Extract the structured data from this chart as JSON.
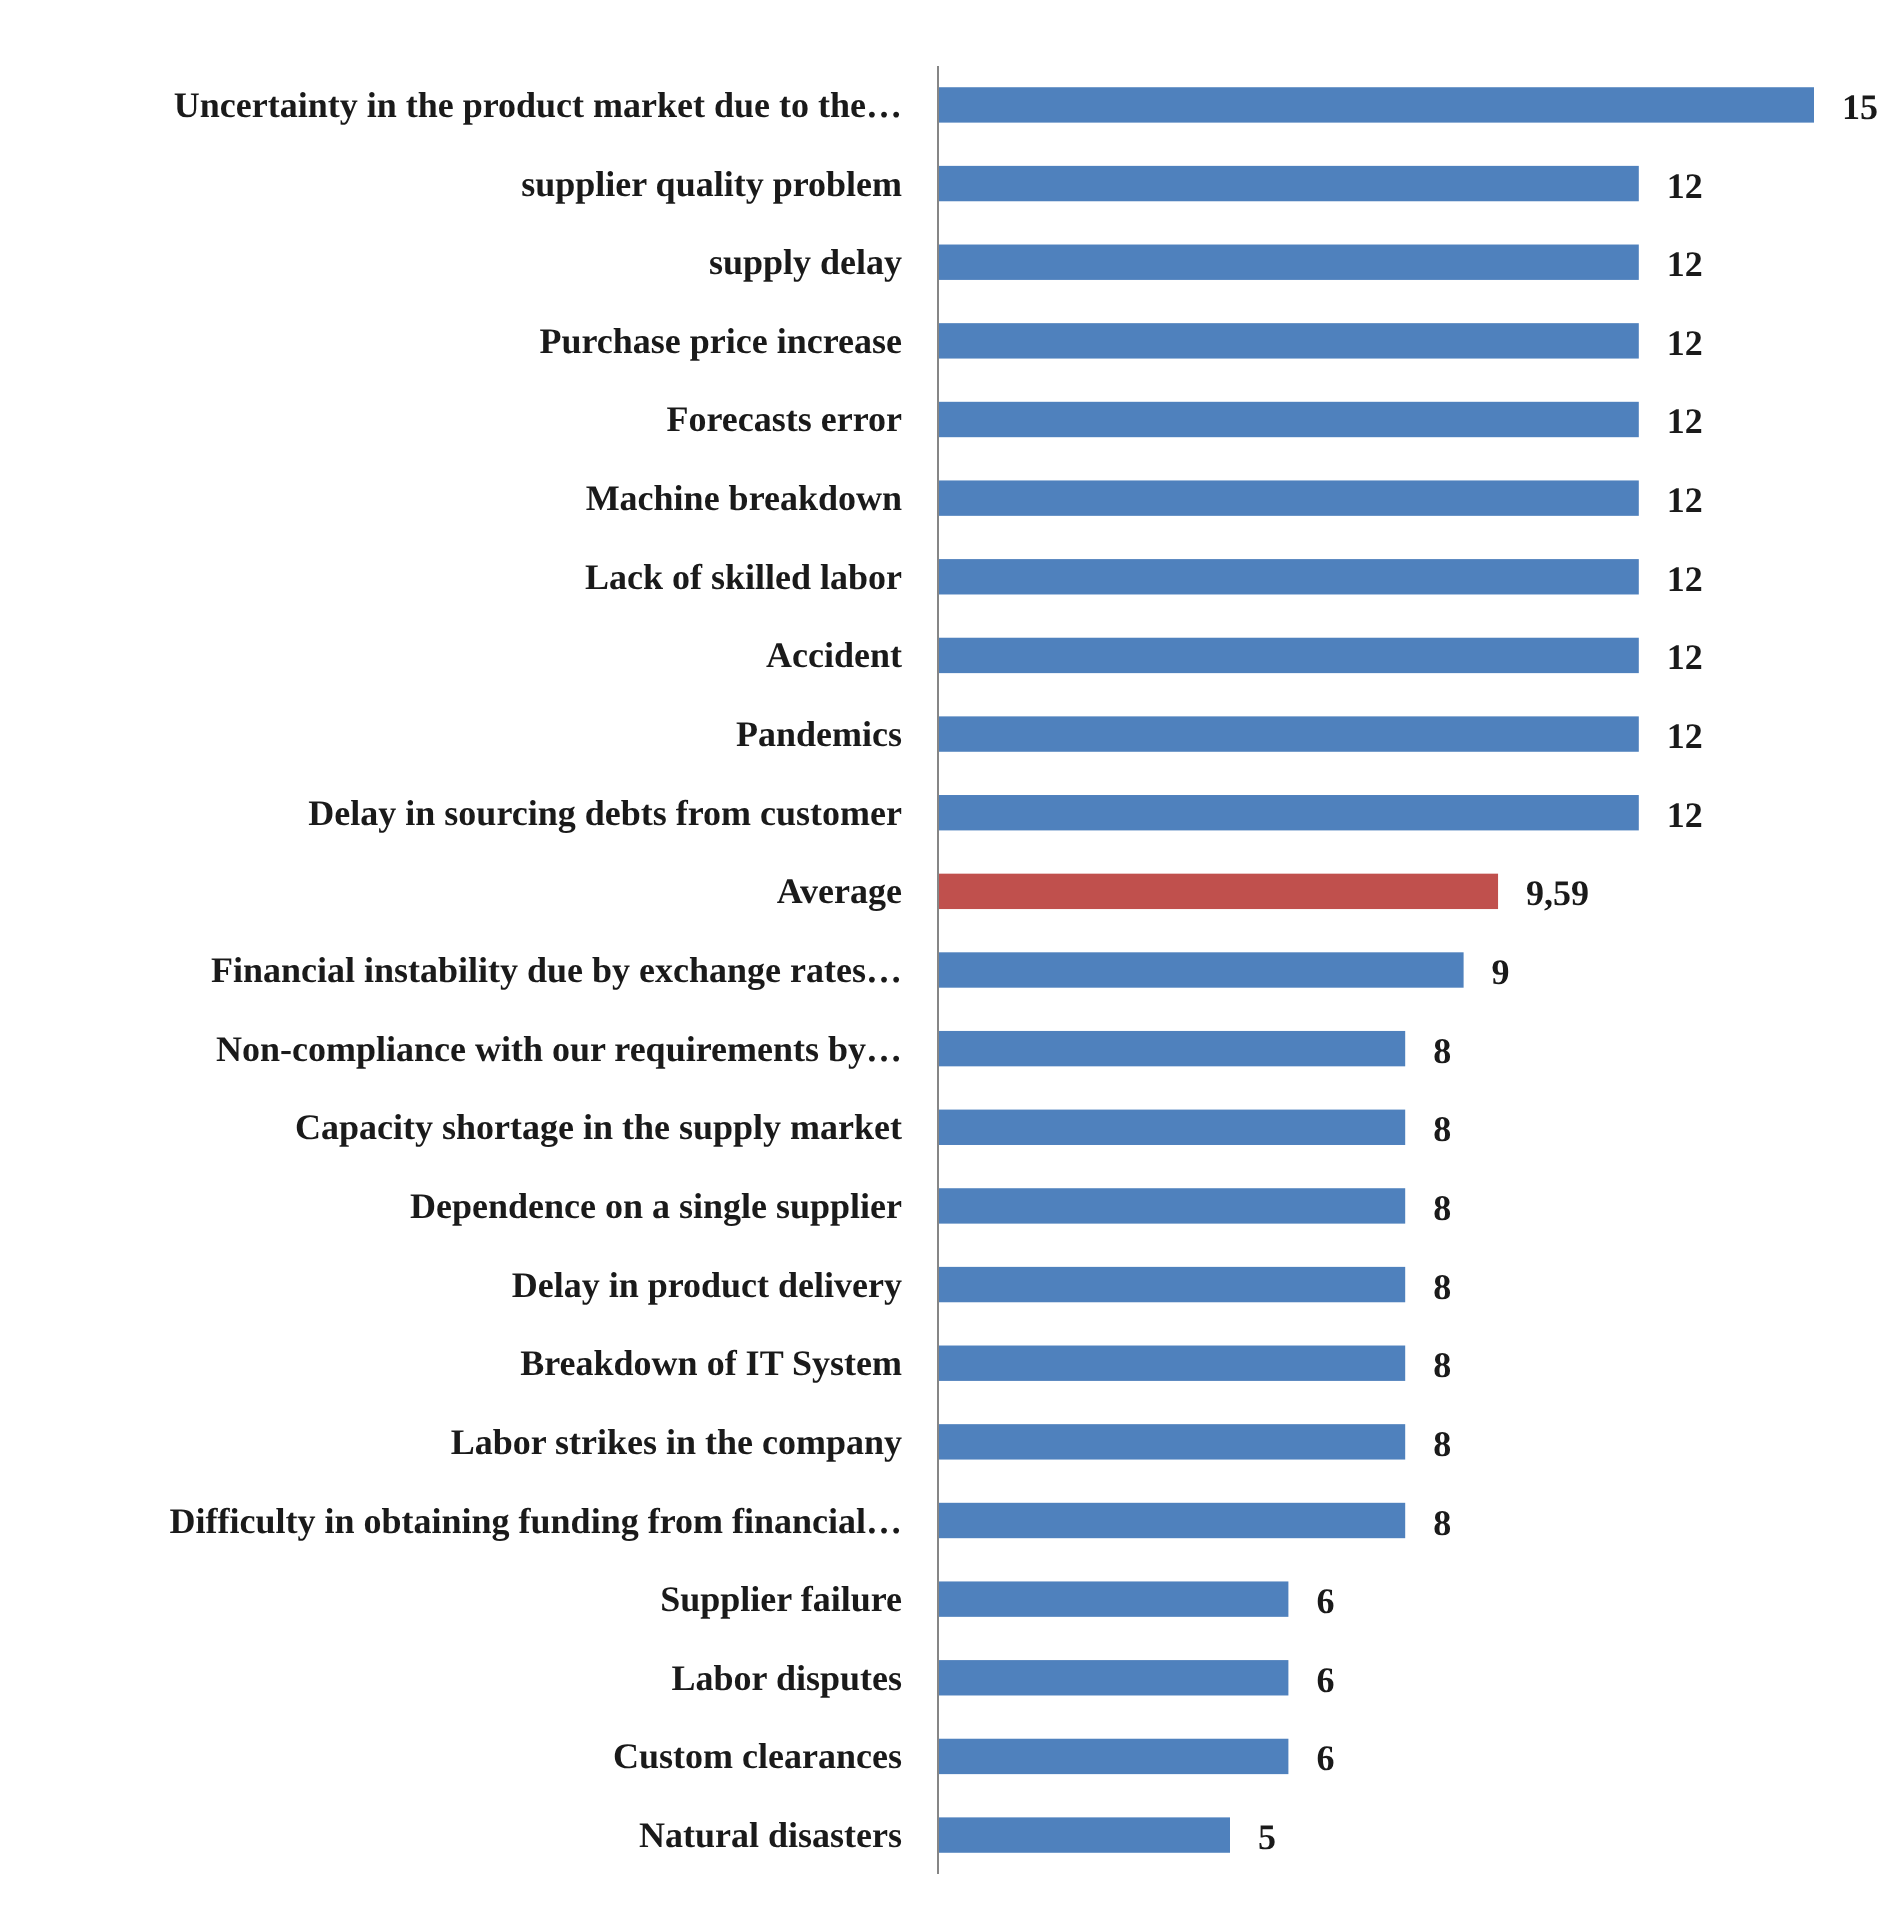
{
  "chart_data": {
    "type": "bar",
    "orientation": "horizontal",
    "categories": [
      "Uncertainty in the product market due to the…",
      "supplier quality problem",
      "supply delay",
      "Purchase price increase",
      "Forecasts error",
      "Machine breakdown",
      "Lack of skilled labor",
      "Accident",
      "Pandemics",
      "Delay in sourcing  debts from customer",
      "Average",
      "Financial instability due by exchange rates…",
      "Non-compliance with our requirements by…",
      "Capacity shortage in the supply market",
      "Dependence on a single supplier",
      "Delay in product delivery",
      "Breakdown of IT System",
      "Labor strikes in the company",
      "Difficulty in obtaining funding from financial…",
      "Supplier failure",
      "Labor disputes",
      "Custom clearances",
      "Natural disasters"
    ],
    "values": [
      15,
      12,
      12,
      12,
      12,
      12,
      12,
      12,
      12,
      12,
      9.59,
      9,
      8,
      8,
      8,
      8,
      8,
      8,
      8,
      6,
      6,
      6,
      5
    ],
    "colors": [
      "#4f81bd",
      "#4f81bd",
      "#4f81bd",
      "#4f81bd",
      "#4f81bd",
      "#4f81bd",
      "#4f81bd",
      "#4f81bd",
      "#4f81bd",
      "#4f81bd",
      "#c0504d",
      "#4f81bd",
      "#4f81bd",
      "#4f81bd",
      "#4f81bd",
      "#4f81bd",
      "#4f81bd",
      "#4f81bd",
      "#4f81bd",
      "#4f81bd",
      "#4f81bd",
      "#4f81bd",
      "#4f81bd"
    ],
    "value_labels": [
      "15",
      "12",
      "12",
      "12",
      "12",
      "12",
      "12",
      "12",
      "12",
      "12",
      "9,59",
      "9",
      "8",
      "8",
      "8",
      "8",
      "8",
      "8",
      "8",
      "6",
      "6",
      "6",
      "5"
    ]
  }
}
